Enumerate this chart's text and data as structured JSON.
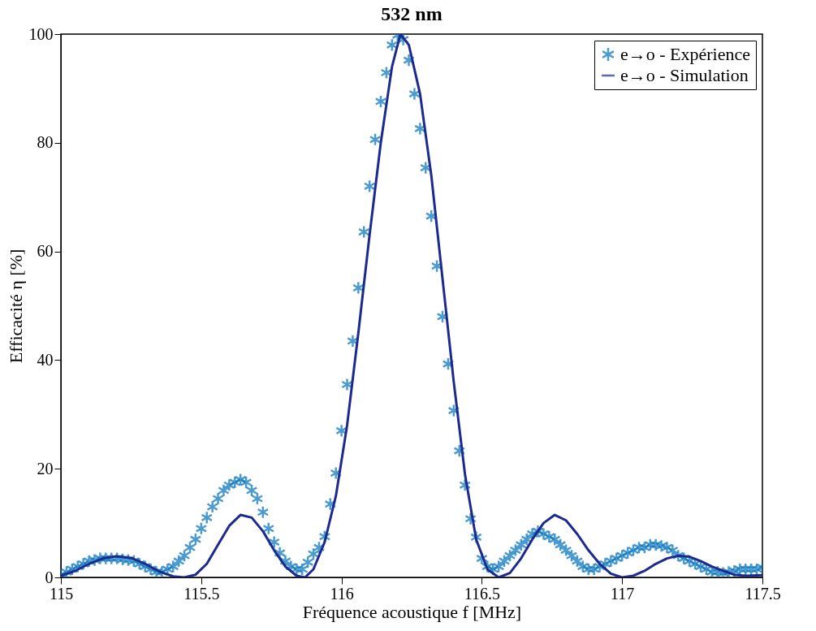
{
  "chart_data": {
    "type": "scatter",
    "title": "532 nm",
    "xlabel": "Fréquence acoustique f [MHz]",
    "ylabel": "Efficacité η [%]",
    "xlim": [
      115,
      117.5
    ],
    "xticks": [
      115,
      115.5,
      116,
      116.5,
      117,
      117.5
    ],
    "ylim": [
      0,
      100
    ],
    "yticks": [
      0,
      20,
      40,
      60,
      80,
      100
    ],
    "grid": false,
    "legend": "top right",
    "series": [
      {
        "name": "e→o - Expérience",
        "marker": "cross",
        "color": "#0072bd",
        "x": [
          115.0,
          115.02,
          115.04,
          115.06,
          115.08,
          115.1,
          115.12,
          115.14,
          115.16,
          115.18,
          115.2,
          115.22,
          115.24,
          115.26,
          115.28,
          115.3,
          115.32,
          115.34,
          115.36,
          115.38,
          115.4,
          115.42,
          115.44,
          115.46,
          115.48,
          115.5,
          115.52,
          115.54,
          115.56,
          115.58,
          115.6,
          115.62,
          115.64,
          115.66,
          115.68,
          115.7,
          115.72,
          115.74,
          115.76,
          115.78,
          115.8,
          115.82,
          115.84,
          115.86,
          115.88,
          115.9,
          115.92,
          115.94,
          115.96,
          115.98,
          116.0,
          116.02,
          116.04,
          116.06,
          116.08,
          116.1,
          116.12,
          116.14,
          116.16,
          116.18,
          116.2,
          116.22,
          116.24,
          116.26,
          116.28,
          116.3,
          116.32,
          116.34,
          116.36,
          116.38,
          116.4,
          116.42,
          116.44,
          116.46,
          116.48,
          116.5,
          116.52,
          116.54,
          116.56,
          116.58,
          116.6,
          116.62,
          116.64,
          116.66,
          116.68,
          116.7,
          116.72,
          116.74,
          116.76,
          116.78,
          116.8,
          116.82,
          116.84,
          116.86,
          116.88,
          116.9,
          116.92,
          116.94,
          116.96,
          116.98,
          117.0,
          117.02,
          117.04,
          117.06,
          117.08,
          117.1,
          117.12,
          117.14,
          117.16,
          117.18,
          117.2,
          117.22,
          117.24,
          117.26,
          117.28,
          117.3,
          117.32,
          117.34,
          117.36,
          117.38,
          117.4,
          117.42,
          117.44,
          117.46,
          117.48,
          117.5
        ],
        "values": [
          0.5,
          1,
          1.5,
          2,
          2.5,
          3,
          3.2,
          3.5,
          3.5,
          3.5,
          3.5,
          3.3,
          3.2,
          3,
          2.5,
          2,
          1.5,
          1,
          1,
          1.5,
          2,
          3,
          4,
          5.5,
          7,
          9,
          11,
          13,
          14.5,
          16,
          17,
          17.5,
          18,
          17.5,
          16,
          14.5,
          12,
          9,
          6.5,
          4.5,
          3,
          2,
          1.5,
          1.5,
          2.8,
          4.3,
          5.5,
          7.5,
          13.5,
          19.2,
          27,
          35.5,
          43.5,
          53.3,
          63.6,
          72,
          80.6,
          87.6,
          92.9,
          98,
          99.8,
          99,
          95.2,
          89,
          82.6,
          75.4,
          66.5,
          57.3,
          48,
          39.3,
          30.7,
          23.3,
          17,
          10.8,
          7.4,
          3.5,
          2,
          1.5,
          2,
          3,
          4,
          5,
          6,
          7,
          8,
          8.5,
          8,
          7.5,
          7,
          6,
          5,
          4,
          3,
          2,
          1.5,
          1.5,
          2,
          2.5,
          3,
          3.5,
          4,
          4.5,
          5,
          5.5,
          5.5,
          6,
          6,
          5.8,
          5.5,
          5,
          4,
          3.5,
          3,
          2.5,
          2,
          1.5,
          1,
          1,
          0.8,
          1,
          1.2,
          1.5,
          1.5,
          1.5,
          1.5,
          1.8
        ]
      },
      {
        "name": "e→o - Simulation",
        "type": "line",
        "marker": "none",
        "line_style": "solid",
        "color": "#1c2a8f",
        "x": [
          115.0,
          115.05,
          115.1,
          115.15,
          115.2,
          115.25,
          115.3,
          115.35,
          115.4,
          115.44,
          115.48,
          115.52,
          115.56,
          115.6,
          115.64,
          115.68,
          115.72,
          115.76,
          115.8,
          115.84,
          115.87,
          115.9,
          115.94,
          115.98,
          116.02,
          116.06,
          116.1,
          116.14,
          116.18,
          116.21,
          116.24,
          116.28,
          116.32,
          116.36,
          116.4,
          116.44,
          116.48,
          116.52,
          116.56,
          116.6,
          116.64,
          116.68,
          116.72,
          116.76,
          116.8,
          116.84,
          116.88,
          116.92,
          116.96,
          117.0,
          117.04,
          117.08,
          117.12,
          117.16,
          117.2,
          117.24,
          117.28,
          117.32,
          117.36,
          117.4,
          117.44,
          117.5
        ],
        "values": [
          0.3,
          1.2,
          2.5,
          3.5,
          3.9,
          3.6,
          2.5,
          1.1,
          0.2,
          0,
          0.5,
          2.5,
          6,
          9.5,
          11.5,
          11,
          8.5,
          5,
          2,
          0.3,
          0,
          1.5,
          6.5,
          15,
          28,
          45,
          63,
          80,
          94,
          100,
          98,
          89,
          74,
          55,
          36,
          19,
          7,
          1.5,
          0,
          0.8,
          3.5,
          7,
          10,
          11.5,
          10.5,
          8,
          5,
          2.5,
          0.7,
          0,
          0.3,
          1.2,
          2.5,
          3.5,
          4,
          3.8,
          3,
          2,
          1.2,
          0.5,
          0.3,
          0.4
        ]
      }
    ]
  }
}
